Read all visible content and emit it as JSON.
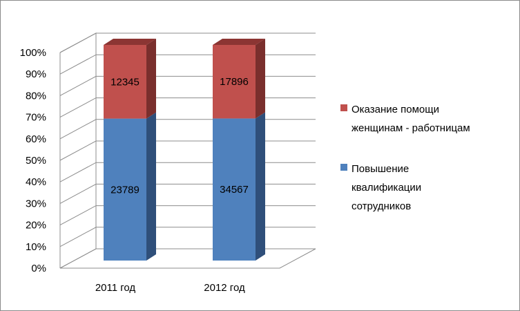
{
  "chart_data": {
    "type": "bar",
    "stacked": "percent",
    "three_d": true,
    "title": "",
    "xlabel": "",
    "ylabel": "",
    "ylim": [
      0,
      100
    ],
    "y_ticks": [
      "0%",
      "10%",
      "20%",
      "30%",
      "40%",
      "50%",
      "60%",
      "70%",
      "80%",
      "90%",
      "100%"
    ],
    "categories": [
      "2011 год",
      "2012 год"
    ],
    "series": [
      {
        "name": "Повышение квалификации сотрудников",
        "legend_lines": [
          "Повышение",
          "квалификации",
          "сотрудников"
        ],
        "values": [
          23789,
          34567
        ],
        "labels": [
          "23789",
          "34567"
        ],
        "color": "#4f81bd",
        "side_color": "#2f4f7a",
        "top_color": "#5b8dc9"
      },
      {
        "name": "Оказание помощи женщинам - работницам",
        "legend_lines": [
          "Оказание помощи",
          "женщинам - работницам"
        ],
        "values": [
          12345,
          17896
        ],
        "labels": [
          "12345",
          "17896"
        ],
        "color": "#c0504d",
        "side_color": "#7a2f2d",
        "top_color": "#8c3533"
      }
    ],
    "grid": true,
    "legend": "right"
  }
}
